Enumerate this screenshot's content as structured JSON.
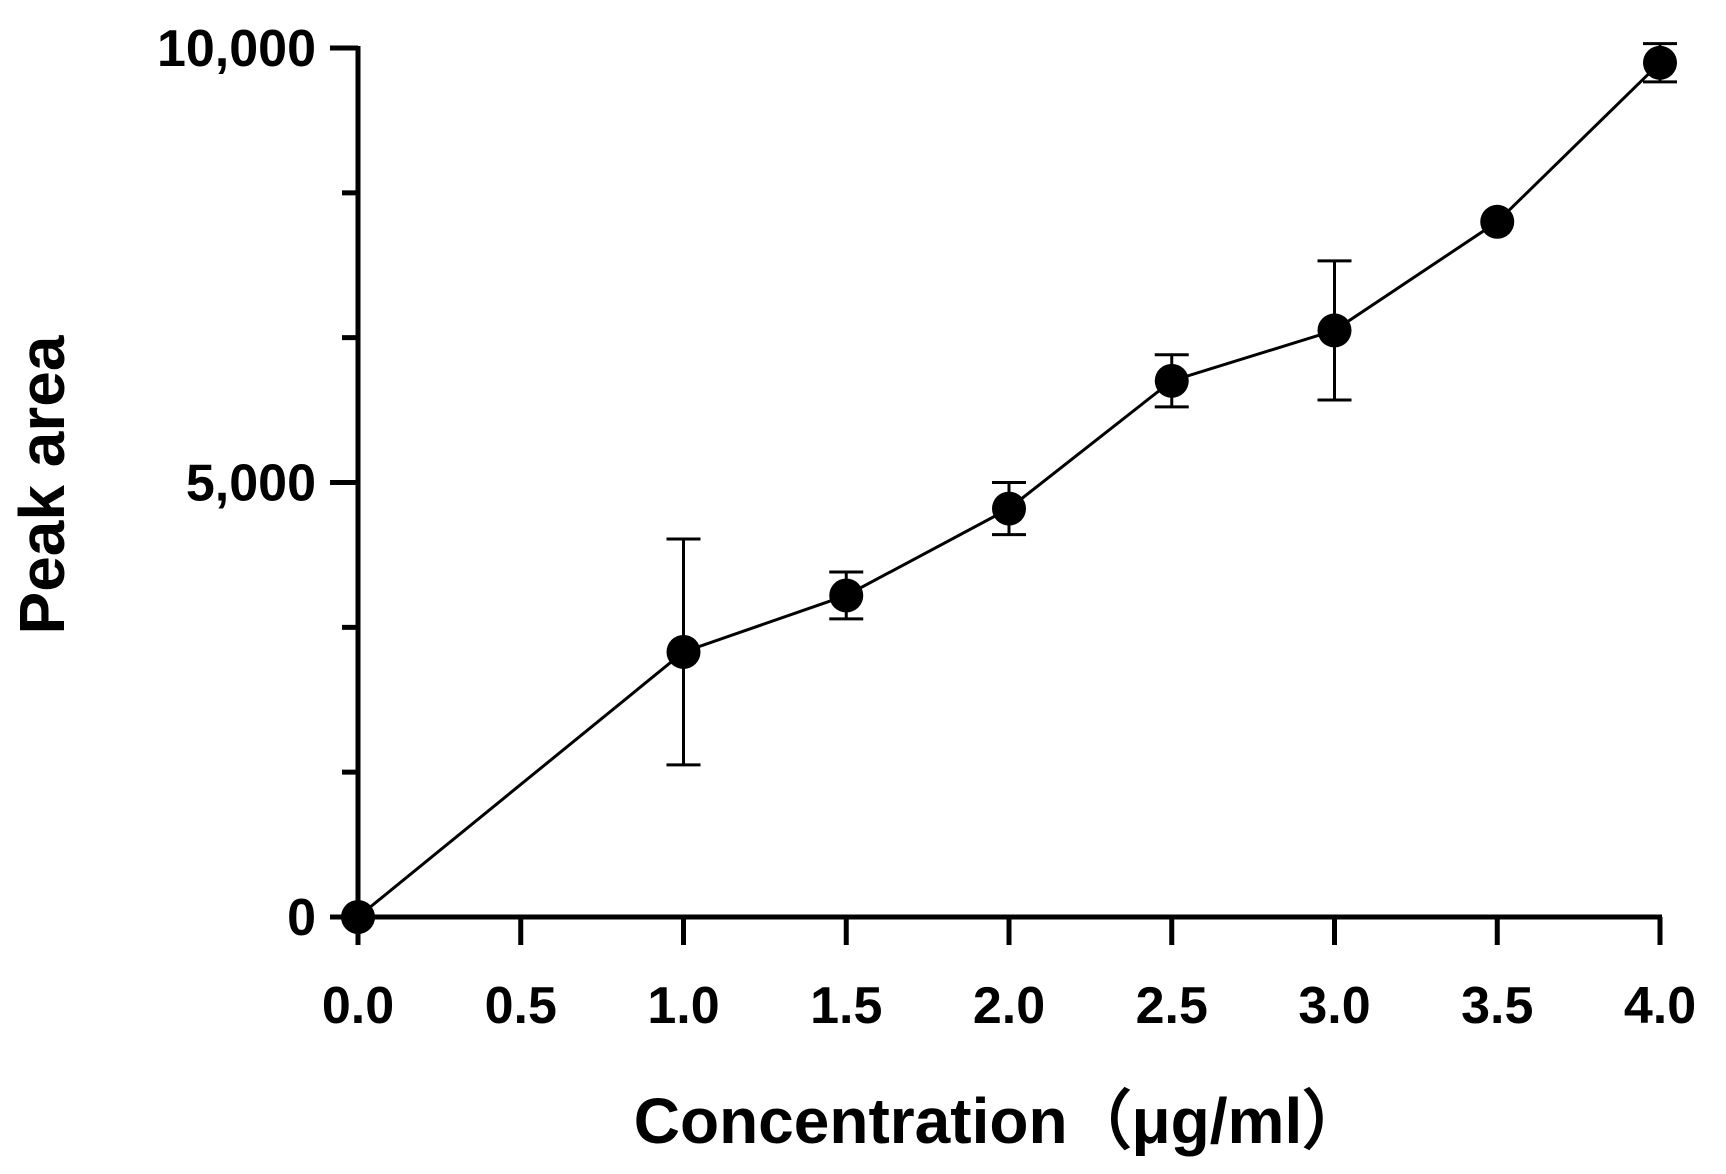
{
  "chart_data": {
    "type": "line",
    "title": "",
    "xlabel": "Concentration（μg/ml）",
    "ylabel": "Peak area",
    "xlim": [
      0,
      4
    ],
    "ylim": [
      0,
      10000
    ],
    "x_ticks": [
      {
        "value": 0.0,
        "label": "0.0"
      },
      {
        "value": 0.5,
        "label": "0.5"
      },
      {
        "value": 1.0,
        "label": "1.0"
      },
      {
        "value": 1.5,
        "label": "1.5"
      },
      {
        "value": 2.0,
        "label": "2.0"
      },
      {
        "value": 2.5,
        "label": "2.5"
      },
      {
        "value": 3.0,
        "label": "3.0"
      },
      {
        "value": 3.5,
        "label": "3.5"
      },
      {
        "value": 4.0,
        "label": "4.0"
      }
    ],
    "y_major_ticks": [
      {
        "value": 0,
        "label": "0"
      },
      {
        "value": 5000,
        "label": "5,000"
      },
      {
        "value": 10000,
        "label": "10,000"
      }
    ],
    "y_minor_ticks": [
      1667,
      3333,
      6667,
      8333
    ],
    "grid": false,
    "series": [
      {
        "name": "Peak area",
        "x": [
          0.0,
          1.0,
          1.5,
          2.0,
          2.5,
          3.0,
          3.5,
          4.0
        ],
        "y": [
          0,
          3050,
          3700,
          4700,
          6170,
          6750,
          8000,
          9830
        ],
        "err": [
          0,
          1300,
          270,
          300,
          300,
          800,
          0,
          220
        ]
      }
    ]
  }
}
